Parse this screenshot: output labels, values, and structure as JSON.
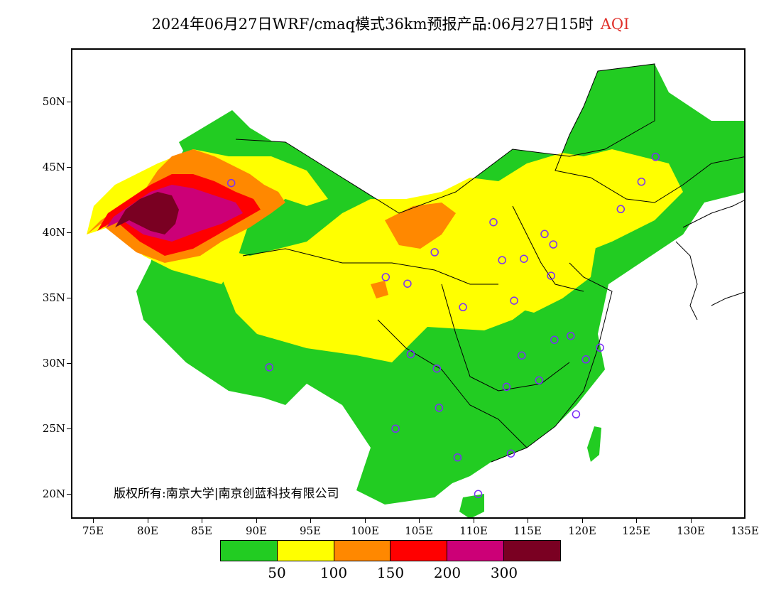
{
  "title": {
    "main": "2024年06月27日WRF/cmaq模式36km预报产品:06月27日15时",
    "product": "AQI"
  },
  "axes": {
    "lat_labels": [
      "50N",
      "45N",
      "40N",
      "35N",
      "30N",
      "25N",
      "20N"
    ],
    "lon_labels": [
      "75E",
      "80E",
      "85E",
      "90E",
      "95E",
      "100E",
      "105E",
      "110E",
      "115E",
      "120E",
      "125E",
      "130E",
      "135E"
    ]
  },
  "copyright": "版权所有:南京大学|南京创蓝科技有限公司",
  "legend": {
    "colors": [
      "#22cc22",
      "#ffff00",
      "#ff8800",
      "#ff0000",
      "#cc0077",
      "#7a0022"
    ],
    "labels": [
      "50",
      "100",
      "150",
      "200",
      "300"
    ],
    "categories": [
      "0-50",
      "50-100",
      "100-150",
      "150-200",
      "200-300",
      ">300"
    ]
  },
  "map": {
    "projection": "lat-lon",
    "lon_range": [
      73,
      135
    ],
    "lat_range": [
      18,
      54
    ],
    "aqi_regions": [
      {
        "name": "south-central-china",
        "level": "0-50"
      },
      {
        "name": "tibet-qinghai-south",
        "level": "0-50"
      },
      {
        "name": "northeast-china",
        "level": "0-50"
      },
      {
        "name": "xinjiang-north-border",
        "level": "0-50"
      },
      {
        "name": "taiwan-hainan",
        "level": "0-50"
      },
      {
        "name": "north-china-plain",
        "level": "50-100"
      },
      {
        "name": "qinghai-gansu-inner-mongolia",
        "level": "50-100"
      },
      {
        "name": "sichuan-basin",
        "level": "50-100"
      },
      {
        "name": "xinjiang-outer-ring",
        "level": "100-150"
      },
      {
        "name": "inner-mongolia-west",
        "level": "100-150"
      },
      {
        "name": "tarim-basin-ring",
        "level": "150-200"
      },
      {
        "name": "tarim-basin-inner",
        "level": "200-300"
      },
      {
        "name": "taklamakan-core",
        "level": ">300"
      }
    ],
    "city_markers": [
      {
        "lon": 87.6,
        "lat": 43.8
      },
      {
        "lon": 91.1,
        "lat": 29.7
      },
      {
        "lon": 101.8,
        "lat": 36.6
      },
      {
        "lon": 103.8,
        "lat": 36.1
      },
      {
        "lon": 106.3,
        "lat": 38.5
      },
      {
        "lon": 104.1,
        "lat": 30.7
      },
      {
        "lon": 106.5,
        "lat": 29.6
      },
      {
        "lon": 106.7,
        "lat": 26.6
      },
      {
        "lon": 102.7,
        "lat": 25.0
      },
      {
        "lon": 108.9,
        "lat": 34.3
      },
      {
        "lon": 111.7,
        "lat": 40.8
      },
      {
        "lon": 112.5,
        "lat": 37.9
      },
      {
        "lon": 114.5,
        "lat": 38.0
      },
      {
        "lon": 116.4,
        "lat": 39.9
      },
      {
        "lon": 117.2,
        "lat": 39.1
      },
      {
        "lon": 113.6,
        "lat": 34.8
      },
      {
        "lon": 117.0,
        "lat": 36.7
      },
      {
        "lon": 114.3,
        "lat": 30.6
      },
      {
        "lon": 112.9,
        "lat": 28.2
      },
      {
        "lon": 115.9,
        "lat": 28.7
      },
      {
        "lon": 117.3,
        "lat": 31.8
      },
      {
        "lon": 118.8,
        "lat": 32.1
      },
      {
        "lon": 120.2,
        "lat": 30.3
      },
      {
        "lon": 121.5,
        "lat": 31.2
      },
      {
        "lon": 119.3,
        "lat": 26.1
      },
      {
        "lon": 113.3,
        "lat": 23.1
      },
      {
        "lon": 108.4,
        "lat": 22.8
      },
      {
        "lon": 110.3,
        "lat": 20.0
      },
      {
        "lon": 123.4,
        "lat": 41.8
      },
      {
        "lon": 125.3,
        "lat": 43.9
      },
      {
        "lon": 126.6,
        "lat": 45.8
      }
    ]
  }
}
